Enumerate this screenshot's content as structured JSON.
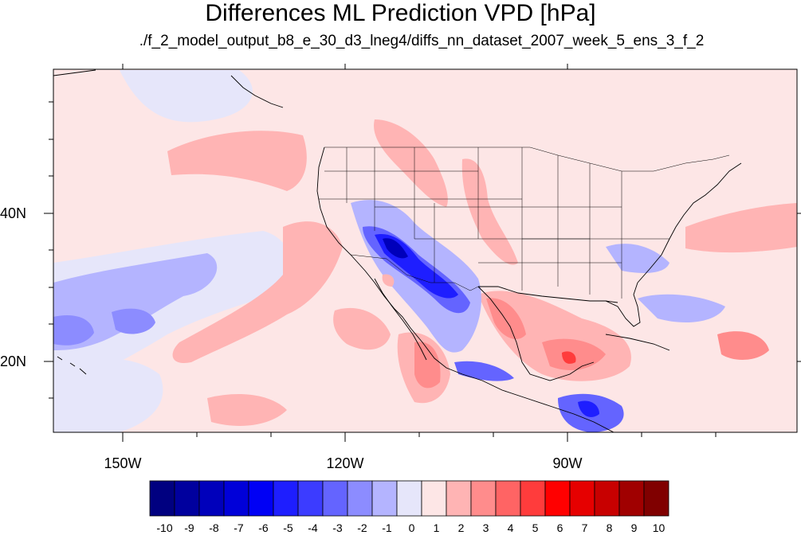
{
  "title": "Differences ML Prediction VPD [hPa]",
  "subtitle": "./f_2_model_output_b8_e_30_d3_lneg4/diffs_nn_dataset_2007_week_5_ens_3_f_2",
  "lat_labels": [
    "40N",
    "20N"
  ],
  "lon_labels": [
    "150W",
    "120W",
    "90W"
  ],
  "colorbar": {
    "labels": [
      "-10",
      "-9",
      "-8",
      "-7",
      "-6",
      "-5",
      "-4",
      "-3",
      "-2",
      "-1",
      "0",
      "1",
      "2",
      "3",
      "4",
      "5",
      "6",
      "7",
      "8",
      "9",
      "10"
    ],
    "colors": [
      "#000080",
      "#00009e",
      "#0000bb",
      "#0000d9",
      "#0000f5",
      "#1e1eff",
      "#3c3cff",
      "#6464ff",
      "#8c8cff",
      "#b4b4ff",
      "#e6e6fa",
      "#fde6e6",
      "#ffb4b4",
      "#ff8c8c",
      "#ff6464",
      "#ff3c3c",
      "#ff0000",
      "#e60000",
      "#c80000",
      "#a00000",
      "#800000"
    ]
  },
  "map": {
    "background_color": "#fde6e6",
    "lat_range": [
      11,
      59
    ],
    "lon_range": [
      -160,
      -60
    ]
  }
}
